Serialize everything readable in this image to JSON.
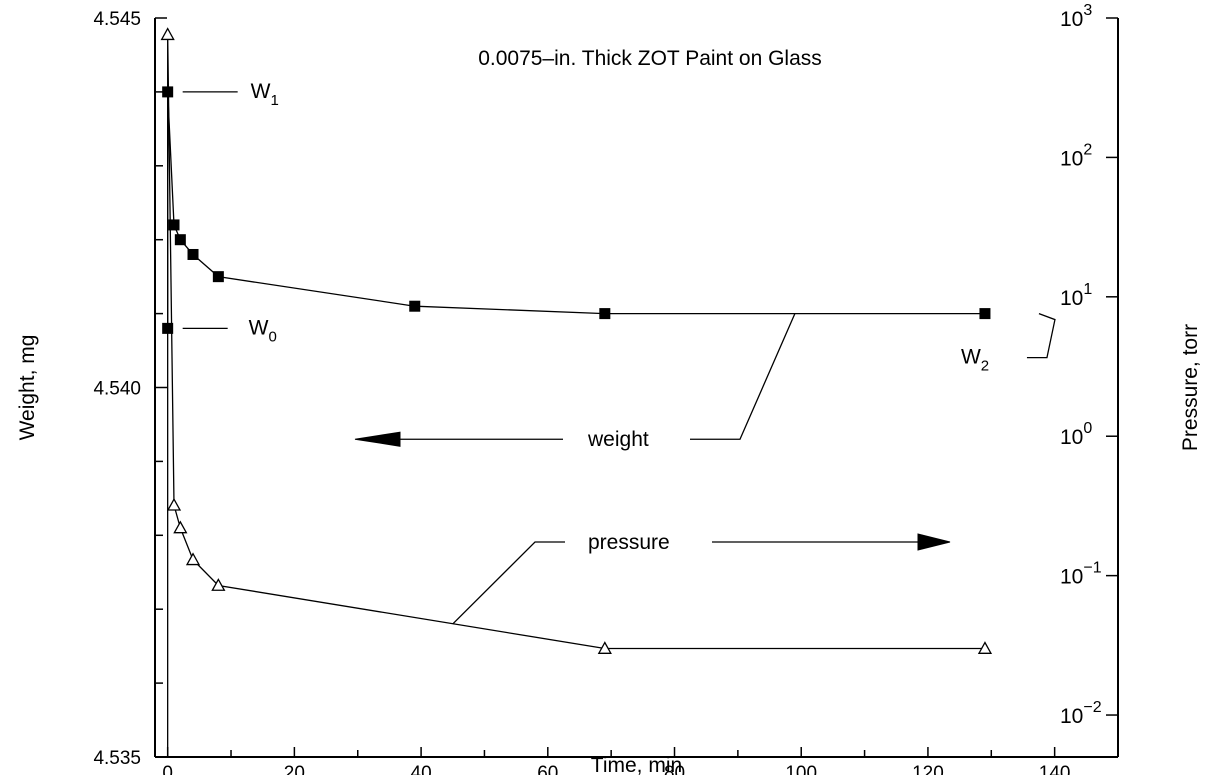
{
  "chart_data": {
    "type": "line",
    "title": "0.0075–in. Thick ZOT Paint on Glass",
    "xlabel": "Time, min",
    "ylabel": "Weight, mg",
    "y2label": "Pressure, torr",
    "xlim": [
      -2,
      150
    ],
    "ylim": [
      4.535,
      4.545
    ],
    "y2lim": [
      0.005,
      1000
    ],
    "y2scale": "log",
    "x_ticks": [
      0,
      20,
      40,
      60,
      80,
      100,
      120,
      140
    ],
    "x_tick_labels": [
      "0",
      "20",
      "40",
      "60",
      "80",
      "100",
      "120",
      "140"
    ],
    "y_tick_labels": [
      {
        "value": 4.535,
        "label": "4.535"
      },
      {
        "value": 4.54,
        "label": "4.540"
      },
      {
        "value": 4.545,
        "label": "4.545"
      }
    ],
    "y2_tick_labels": [
      {
        "value": 1000,
        "base": "10",
        "exp": "3"
      },
      {
        "value": 100,
        "base": "10",
        "exp": "2"
      },
      {
        "value": 10,
        "base": "10",
        "exp": "1"
      },
      {
        "value": 1,
        "base": "10",
        "exp": "0"
      },
      {
        "value": 0.1,
        "base": "10",
        "exp": "−1"
      },
      {
        "value": 0.01,
        "base": "10",
        "exp": "−2"
      }
    ],
    "grid": false,
    "series": [
      {
        "name": "weight",
        "axis": "left",
        "marker": "filled-square",
        "x": [
          0,
          1,
          2,
          4,
          8,
          39,
          69,
          129
        ],
        "y": [
          4.544,
          4.5422,
          4.542,
          4.5418,
          4.5415,
          4.5411,
          4.541,
          4.541
        ]
      },
      {
        "name": "pressure",
        "axis": "right",
        "marker": "open-triangle",
        "x": [
          0,
          1,
          2,
          4,
          8,
          69,
          129
        ],
        "y": [
          760,
          0.32,
          0.22,
          0.13,
          0.085,
          0.03,
          0.03
        ]
      }
    ],
    "extra_points": [
      {
        "series": "weight",
        "x": 0,
        "y": 4.5408
      }
    ],
    "annotations": [
      {
        "text_base": "W",
        "text_sub": "1",
        "at": "weight first point"
      },
      {
        "text_base": "W",
        "text_sub": "0",
        "at": "weight initial value"
      },
      {
        "text_base": "W",
        "text_sub": "2",
        "at": "weight final point"
      },
      {
        "text": "weight",
        "arrow": "left"
      },
      {
        "text": "pressure",
        "arrow": "right"
      }
    ]
  }
}
